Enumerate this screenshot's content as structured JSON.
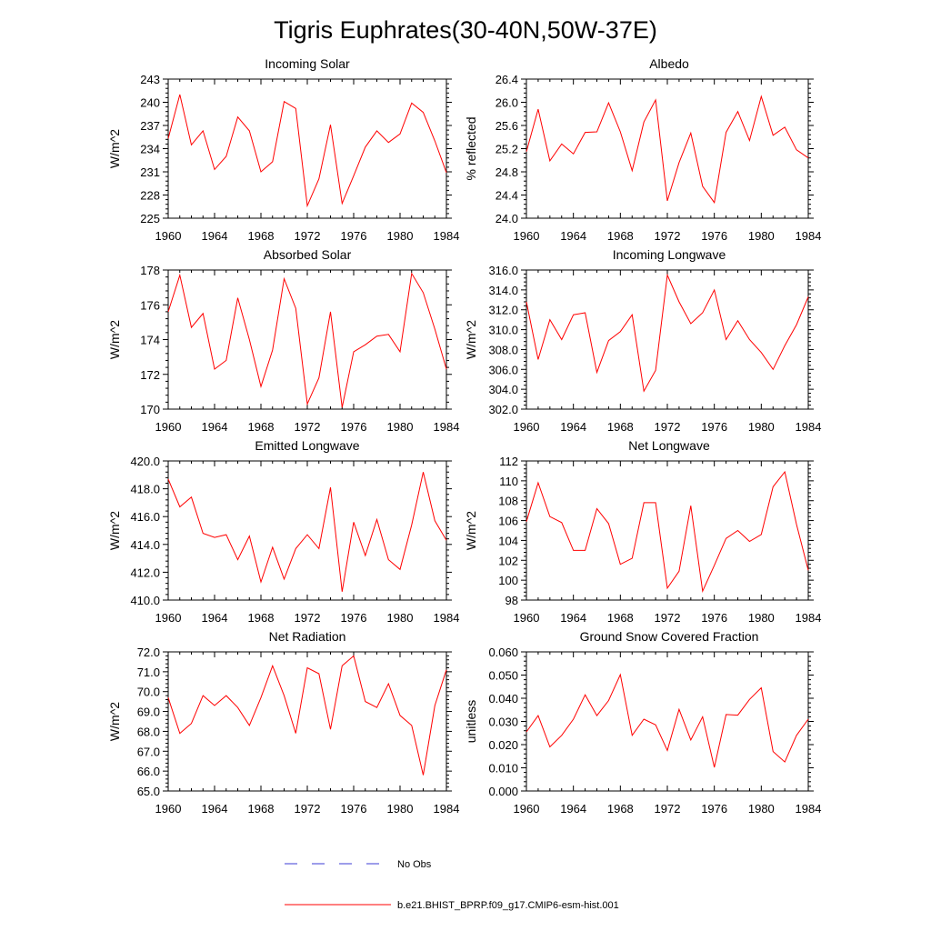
{
  "figure": {
    "title": "Tigris Euphrates(30-40N,50W-37E)"
  },
  "legend": {
    "obs_label": "No Obs",
    "model_label": "b.e21.BHIST_BPRP.f09_g17.CMIP6-esm-hist.001",
    "obs_color": "#3b3bd6",
    "model_color": "#ff0000"
  },
  "chart_data": [
    {
      "type": "line",
      "title": "Incoming Solar",
      "ylabel": "W/m^2",
      "xlabel": "",
      "xlim": [
        1960,
        1984
      ],
      "ylim": [
        225,
        243
      ],
      "xticks": [
        "1960",
        "1964",
        "1968",
        "1972",
        "1976",
        "1980",
        "1984"
      ],
      "yticks": [
        "225",
        "228",
        "231",
        "234",
        "237",
        "240",
        "243"
      ],
      "series": [
        {
          "name": "b.e21.BHIST_BPRP.f09_g17.CMIP6-esm-hist.001",
          "x": [
            1960,
            1961,
            1962,
            1963,
            1964,
            1965,
            1966,
            1967,
            1968,
            1969,
            1970,
            1971,
            1972,
            1973,
            1974,
            1975,
            1976,
            1977,
            1978,
            1979,
            1980,
            1981,
            1982,
            1983,
            1984
          ],
          "values": [
            235.3,
            241.0,
            234.5,
            236.3,
            231.3,
            233.0,
            238.1,
            236.3,
            231.0,
            232.3,
            240.1,
            239.2,
            226.6,
            230.1,
            237.1,
            226.9,
            230.5,
            234.2,
            236.3,
            234.8,
            235.9,
            239.9,
            238.7,
            235.0,
            230.9
          ]
        }
      ]
    },
    {
      "type": "line",
      "title": "Albedo",
      "ylabel": "% reflected",
      "xlabel": "",
      "xlim": [
        1960,
        1984
      ],
      "ylim": [
        24.0,
        26.4
      ],
      "xticks": [
        "1960",
        "1964",
        "1968",
        "1972",
        "1976",
        "1980",
        "1984"
      ],
      "yticks": [
        "24.0",
        "24.4",
        "24.8",
        "25.2",
        "25.6",
        "26.0",
        "26.4"
      ],
      "series": [
        {
          "name": "b.e21.BHIST_BPRP.f09_g17.CMIP6-esm-hist.001",
          "x": [
            1960,
            1961,
            1962,
            1963,
            1964,
            1965,
            1966,
            1967,
            1968,
            1969,
            1970,
            1971,
            1972,
            1973,
            1974,
            1975,
            1976,
            1977,
            1978,
            1979,
            1980,
            1981,
            1982,
            1983,
            1984
          ],
          "values": [
            25.15,
            25.88,
            24.99,
            25.28,
            25.11,
            25.48,
            25.49,
            25.99,
            25.49,
            24.82,
            25.66,
            26.04,
            24.3,
            24.96,
            25.47,
            24.55,
            24.27,
            25.48,
            25.84,
            25.34,
            26.1,
            25.43,
            25.57,
            25.18,
            25.04
          ]
        }
      ]
    },
    {
      "type": "line",
      "title": "Absorbed Solar",
      "ylabel": "W/m^2",
      "xlabel": "",
      "xlim": [
        1960,
        1984
      ],
      "ylim": [
        170,
        178
      ],
      "xticks": [
        "1960",
        "1964",
        "1968",
        "1972",
        "1976",
        "1980",
        "1984"
      ],
      "yticks": [
        "170",
        "172",
        "174",
        "176",
        "178"
      ],
      "series": [
        {
          "name": "b.e21.BHIST_BPRP.f09_g17.CMIP6-esm-hist.001",
          "x": [
            1960,
            1961,
            1962,
            1963,
            1964,
            1965,
            1966,
            1967,
            1968,
            1969,
            1970,
            1971,
            1972,
            1973,
            1974,
            1975,
            1976,
            1977,
            1978,
            1979,
            1980,
            1981,
            1982,
            1983,
            1984
          ],
          "values": [
            175.6,
            177.7,
            174.7,
            175.5,
            172.3,
            172.8,
            176.4,
            174.0,
            171.3,
            173.4,
            177.5,
            175.8,
            170.3,
            171.8,
            175.6,
            170.1,
            173.3,
            173.7,
            174.2,
            174.3,
            173.3,
            177.8,
            176.7,
            174.6,
            172.3
          ]
        }
      ]
    },
    {
      "type": "line",
      "title": "Incoming Longwave",
      "ylabel": "W/m^2",
      "xlabel": "",
      "xlim": [
        1960,
        1984
      ],
      "ylim": [
        302,
        316
      ],
      "xticks": [
        "1960",
        "1964",
        "1968",
        "1972",
        "1976",
        "1980",
        "1984"
      ],
      "yticks": [
        "302.0",
        "304.0",
        "306.0",
        "308.0",
        "310.0",
        "312.0",
        "314.0",
        "316.0"
      ],
      "series": [
        {
          "name": "b.e21.BHIST_BPRP.f09_g17.CMIP6-esm-hist.001",
          "x": [
            1960,
            1961,
            1962,
            1963,
            1964,
            1965,
            1966,
            1967,
            1968,
            1969,
            1970,
            1971,
            1972,
            1973,
            1974,
            1975,
            1976,
            1977,
            1978,
            1979,
            1980,
            1981,
            1982,
            1983,
            1984
          ],
          "values": [
            312.8,
            307.0,
            311.0,
            309.0,
            311.5,
            311.7,
            305.7,
            308.9,
            309.8,
            311.5,
            303.8,
            305.9,
            315.5,
            312.8,
            310.6,
            311.7,
            314.0,
            309.0,
            310.9,
            309.0,
            307.7,
            306.0,
            308.4,
            310.5,
            313.3
          ]
        }
      ]
    },
    {
      "type": "line",
      "title": "Emitted Longwave",
      "ylabel": "W/m^2",
      "xlabel": "",
      "xlim": [
        1960,
        1984
      ],
      "ylim": [
        410,
        420
      ],
      "xticks": [
        "1960",
        "1964",
        "1968",
        "1972",
        "1976",
        "1980",
        "1984"
      ],
      "yticks": [
        "410.0",
        "412.0",
        "414.0",
        "416.0",
        "418.0",
        "420.0"
      ],
      "series": [
        {
          "name": "b.e21.BHIST_BPRP.f09_g17.CMIP6-esm-hist.001",
          "x": [
            1960,
            1961,
            1962,
            1963,
            1964,
            1965,
            1966,
            1967,
            1968,
            1969,
            1970,
            1971,
            1972,
            1973,
            1974,
            1975,
            1976,
            1977,
            1978,
            1979,
            1980,
            1981,
            1982,
            1983,
            1984
          ],
          "values": [
            418.7,
            416.7,
            417.4,
            414.8,
            414.5,
            414.7,
            412.9,
            414.6,
            411.3,
            413.8,
            411.5,
            413.7,
            414.7,
            413.7,
            418.1,
            410.6,
            415.6,
            413.2,
            415.8,
            412.9,
            412.2,
            415.4,
            419.2,
            415.7,
            414.3
          ]
        }
      ]
    },
    {
      "type": "line",
      "title": "Net Longwave",
      "ylabel": "W/m^2",
      "xlabel": "",
      "xlim": [
        1960,
        1984
      ],
      "ylim": [
        98,
        112
      ],
      "xticks": [
        "1960",
        "1964",
        "1968",
        "1972",
        "1976",
        "1980",
        "1984"
      ],
      "yticks": [
        "98",
        "100",
        "102",
        "104",
        "106",
        "108",
        "110",
        "112"
      ],
      "series": [
        {
          "name": "b.e21.BHIST_BPRP.f09_g17.CMIP6-esm-hist.001",
          "x": [
            1960,
            1961,
            1962,
            1963,
            1964,
            1965,
            1966,
            1967,
            1968,
            1969,
            1970,
            1971,
            1972,
            1973,
            1974,
            1975,
            1976,
            1977,
            1978,
            1979,
            1980,
            1981,
            1982,
            1983,
            1984
          ],
          "values": [
            105.9,
            109.8,
            106.4,
            105.8,
            103.0,
            103.0,
            107.2,
            105.7,
            101.6,
            102.2,
            107.8,
            107.8,
            99.2,
            100.9,
            107.5,
            98.9,
            101.5,
            104.2,
            105.0,
            103.9,
            104.6,
            109.4,
            110.9,
            105.6,
            101.0
          ]
        }
      ]
    },
    {
      "type": "line",
      "title": "Net Radiation",
      "ylabel": "W/m^2",
      "xlabel": "",
      "xlim": [
        1960,
        1984
      ],
      "ylim": [
        65,
        72
      ],
      "xticks": [
        "1960",
        "1964",
        "1968",
        "1972",
        "1976",
        "1980",
        "1984"
      ],
      "yticks": [
        "65.0",
        "66.0",
        "67.0",
        "68.0",
        "69.0",
        "70.0",
        "71.0",
        "72.0"
      ],
      "series": [
        {
          "name": "b.e21.BHIST_BPRP.f09_g17.CMIP6-esm-hist.001",
          "x": [
            1960,
            1961,
            1962,
            1963,
            1964,
            1965,
            1966,
            1967,
            1968,
            1969,
            1970,
            1971,
            1972,
            1973,
            1974,
            1975,
            1976,
            1977,
            1978,
            1979,
            1980,
            1981,
            1982,
            1983,
            1984
          ],
          "values": [
            69.7,
            67.9,
            68.4,
            69.8,
            69.3,
            69.8,
            69.2,
            68.3,
            69.7,
            71.3,
            69.8,
            67.9,
            71.2,
            70.9,
            68.1,
            71.3,
            71.8,
            69.5,
            69.2,
            70.4,
            68.8,
            68.3,
            65.8,
            69.3,
            71.1
          ]
        }
      ]
    },
    {
      "type": "line",
      "title": "Ground Snow Covered Fraction",
      "ylabel": "unitless",
      "xlabel": "",
      "xlim": [
        1960,
        1984
      ],
      "ylim": [
        0.0,
        0.06
      ],
      "xticks": [
        "1960",
        "1964",
        "1968",
        "1972",
        "1976",
        "1980",
        "1984"
      ],
      "yticks": [
        "0.000",
        "0.010",
        "0.020",
        "0.030",
        "0.040",
        "0.050",
        "0.060"
      ],
      "series": [
        {
          "name": "b.e21.BHIST_BPRP.f09_g17.CMIP6-esm-hist.001",
          "x": [
            1960,
            1961,
            1962,
            1963,
            1964,
            1965,
            1966,
            1967,
            1968,
            1969,
            1970,
            1971,
            1972,
            1973,
            1974,
            1975,
            1976,
            1977,
            1978,
            1979,
            1980,
            1981,
            1982,
            1983,
            1984
          ],
          "values": [
            0.0255,
            0.0325,
            0.019,
            0.024,
            0.031,
            0.0415,
            0.0325,
            0.039,
            0.0502,
            0.024,
            0.031,
            0.0285,
            0.0175,
            0.0352,
            0.022,
            0.032,
            0.0102,
            0.033,
            0.0327,
            0.0395,
            0.0445,
            0.017,
            0.0125,
            0.024,
            0.031
          ]
        }
      ]
    }
  ]
}
